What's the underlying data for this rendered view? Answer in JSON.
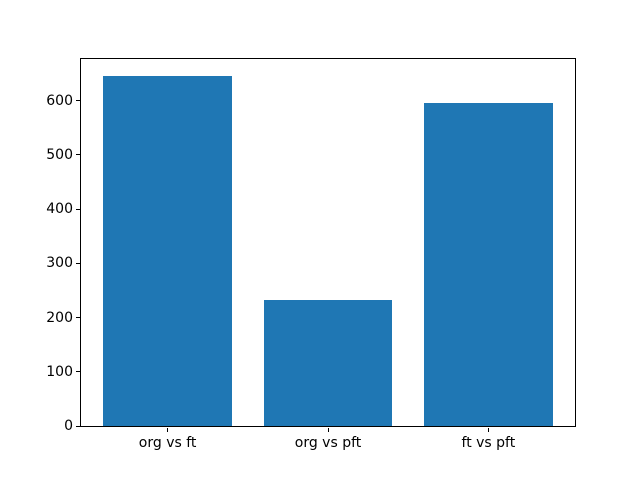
{
  "figure": {
    "background": "#ffffff",
    "title": ""
  },
  "chart_data": {
    "type": "bar",
    "categories": [
      "org vs ft",
      "org vs pft",
      "ft vs pft"
    ],
    "values": [
      645,
      233,
      595
    ],
    "title": "",
    "xlabel": "",
    "ylabel": "",
    "ylim": [
      0,
      677
    ],
    "xlim": [
      -0.54,
      2.54
    ],
    "yticks": [
      0,
      100,
      200,
      300,
      400,
      500,
      600
    ],
    "bar_width": 0.8,
    "bar_color": "#1f77b4",
    "spine_color": "#000000",
    "tick_label_color": "#000000",
    "grid": false,
    "legend_position": "none"
  }
}
